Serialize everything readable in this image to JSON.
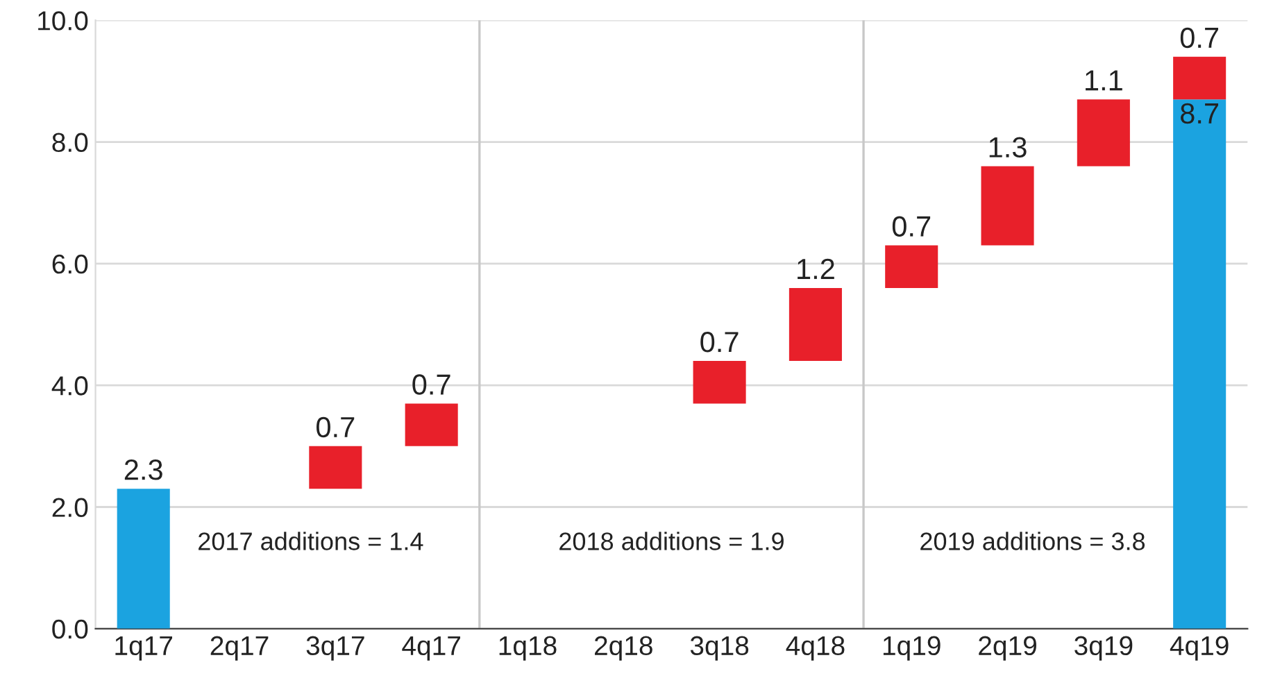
{
  "chart_data": {
    "type": "bar",
    "categories": [
      "1q17",
      "2q17",
      "3q17",
      "4q17",
      "1q18",
      "2q18",
      "3q18",
      "4q18",
      "1q19",
      "2q19",
      "3q19",
      "4q19"
    ],
    "series": [
      {
        "color": "#1ba3e0",
        "values": [
          2.3,
          null,
          null,
          null,
          null,
          null,
          null,
          null,
          null,
          null,
          null,
          8.7
        ],
        "base": [
          0,
          null,
          null,
          null,
          null,
          null,
          null,
          null,
          null,
          null,
          null,
          0
        ]
      },
      {
        "color": "#e8202a",
        "values": [
          null,
          null,
          0.7,
          0.7,
          null,
          null,
          0.7,
          1.2,
          0.7,
          1.3,
          1.1,
          0.7
        ],
        "base": [
          null,
          null,
          2.3,
          3.0,
          null,
          null,
          3.7,
          4.4,
          5.6,
          6.3,
          7.6,
          8.7
        ]
      }
    ],
    "ylim": [
      0,
      10
    ],
    "yticks": [
      {
        "value": 0,
        "label": "0.0"
      },
      {
        "value": 2,
        "label": "2.0"
      },
      {
        "value": 4,
        "label": "4.0"
      },
      {
        "value": 6,
        "label": "6.0"
      },
      {
        "value": 8,
        "label": "8.0"
      },
      {
        "value": 10,
        "label": "10.0"
      }
    ],
    "grid": "y",
    "data_labels": true,
    "annotations": [
      "2017 additions = 1.4",
      "2018 additions = 1.9",
      "2019 additions = 3.8"
    ]
  }
}
